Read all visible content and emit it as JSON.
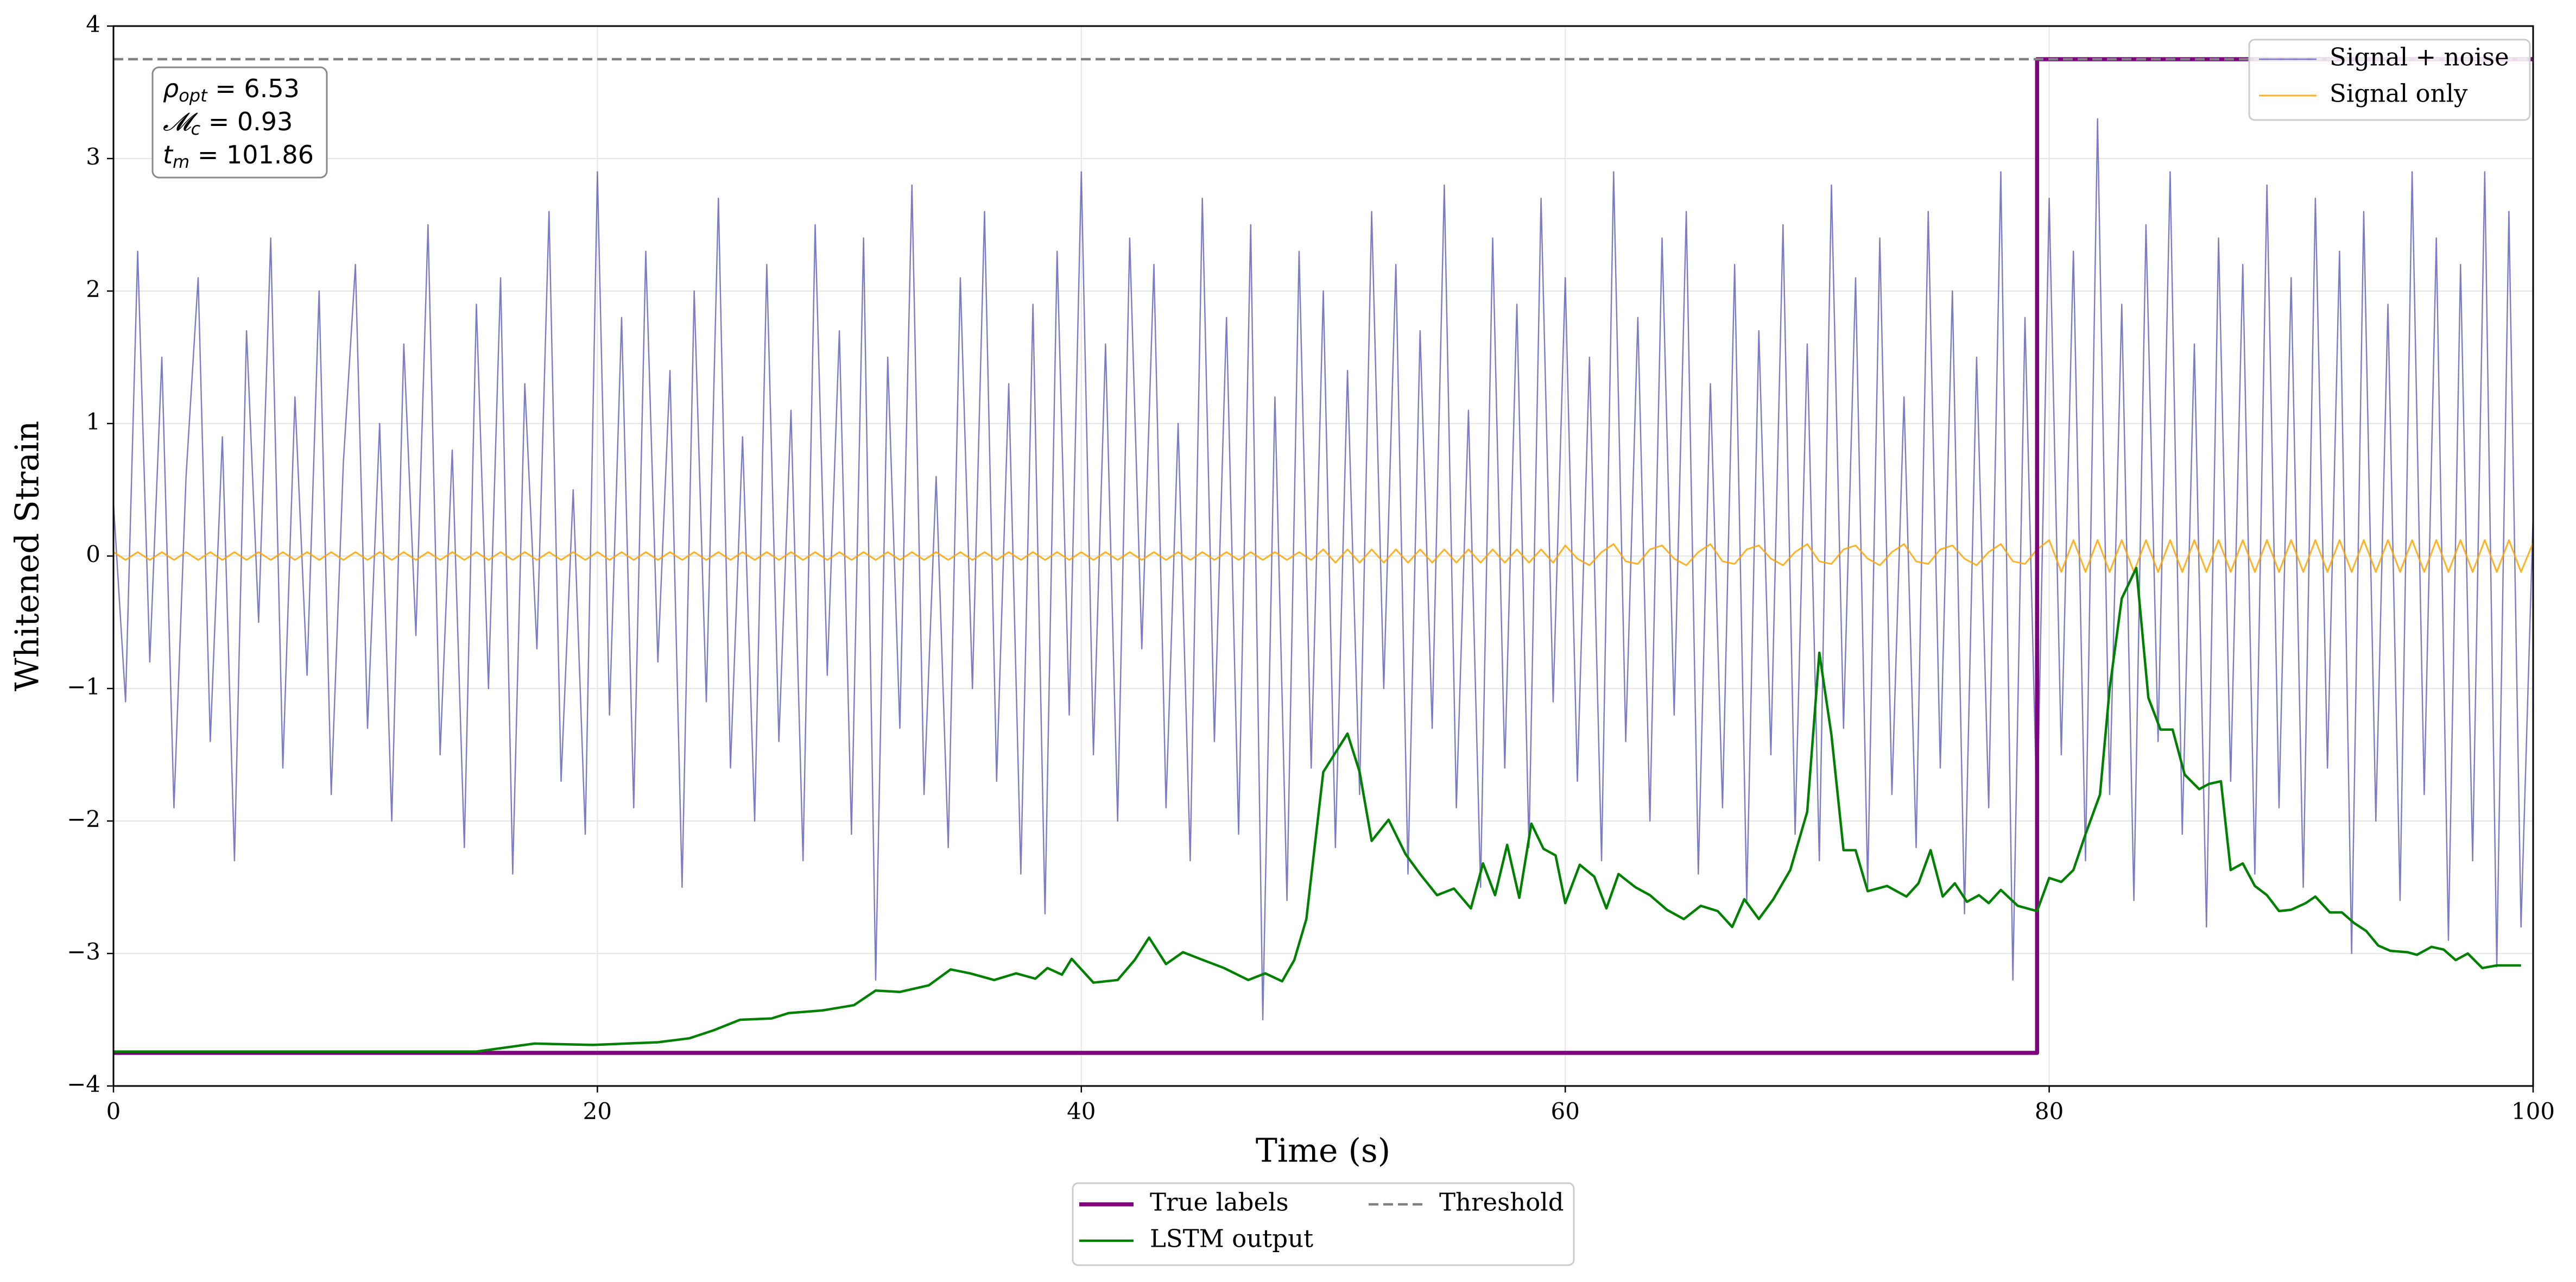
{
  "chart_data": {
    "type": "line",
    "xlabel": "Time (s)",
    "ylabel": "Whitened Strain",
    "xlim": [
      0,
      100
    ],
    "ylim": [
      -4,
      4
    ],
    "xticks": [
      0,
      20,
      40,
      60,
      80,
      100
    ],
    "yticks": [
      {
        "value": -4,
        "label": "−4"
      },
      {
        "value": -3,
        "label": "−3"
      },
      {
        "value": -2,
        "label": "−2"
      },
      {
        "value": -1,
        "label": "−1"
      },
      0,
      1,
      2,
      3,
      4
    ],
    "grid": true,
    "annotation": [
      {
        "symbol": "ρ",
        "subscript": "opt",
        "text": " = 6.53"
      },
      {
        "symbol": "𝓜",
        "subscript": "c",
        "text": " = 0.93"
      },
      {
        "symbol": "t",
        "subscript": "m",
        "text": " = 101.86"
      }
    ],
    "x": [
      0,
      0.5,
      1,
      1.5,
      2,
      2.5,
      3,
      3.5,
      4,
      4.5,
      5,
      5.5,
      6,
      6.5,
      7,
      7.5,
      8,
      8.5,
      9,
      9.5,
      10,
      10.5,
      11,
      11.5,
      12,
      12.5,
      13,
      13.5,
      14,
      14.5,
      15,
      15.5,
      16,
      16.5,
      17,
      17.5,
      18,
      18.5,
      19,
      19.5,
      20,
      20.5,
      21,
      21.5,
      22,
      22.5,
      23,
      23.5,
      24,
      24.5,
      25,
      25.5,
      26,
      26.5,
      27,
      27.5,
      28,
      28.5,
      29,
      29.5,
      30,
      30.5,
      31,
      31.5,
      32,
      32.5,
      33,
      33.5,
      34,
      34.5,
      35,
      35.5,
      36,
      36.5,
      37,
      37.5,
      38,
      38.5,
      39,
      39.5,
      40,
      40.5,
      41,
      41.5,
      42,
      42.5,
      43,
      43.5,
      44,
      44.5,
      45,
      45.5,
      46,
      46.5,
      47,
      47.5,
      48,
      48.5,
      49,
      49.5,
      50,
      50.5,
      51,
      51.5,
      52,
      52.5,
      53,
      53.5,
      54,
      54.5,
      55,
      55.5,
      56,
      56.5,
      57,
      57.5,
      58,
      58.5,
      59,
      59.5,
      60,
      60.5,
      61,
      61.5,
      62,
      62.5,
      63,
      63.5,
      64,
      64.5,
      65,
      65.5,
      66,
      66.5,
      67,
      67.5,
      68,
      68.5,
      69,
      69.5,
      70,
      70.5,
      71,
      71.5,
      72,
      72.5,
      73,
      73.5,
      74,
      74.5,
      75,
      75.5,
      76,
      76.5,
      77,
      77.5,
      78,
      78.5,
      79,
      79.5,
      80,
      80.5,
      81,
      81.5,
      82,
      82.5,
      83,
      83.5,
      84,
      84.5,
      85,
      85.5,
      86,
      86.5,
      87,
      87.5,
      88,
      88.5,
      89,
      89.5,
      90,
      90.5,
      91,
      91.5,
      92,
      92.5,
      93,
      93.5,
      94,
      94.5,
      95,
      95.5,
      96,
      96.5,
      97,
      97.5,
      98,
      98.5,
      99,
      99.5,
      100
    ],
    "series": [
      {
        "name": "Signal + noise",
        "color": "#5a5ab8",
        "width": 2.4,
        "opacity": 0.8,
        "legend": "upper right",
        "values": [
          0.4,
          -1.1,
          2.3,
          -0.8,
          1.5,
          -1.9,
          0.6,
          2.1,
          -1.4,
          0.9,
          -2.3,
          1.7,
          -0.5,
          2.4,
          -1.6,
          1.2,
          -0.9,
          2.0,
          -1.8,
          0.7,
          2.2,
          -1.3,
          1.0,
          -2.0,
          1.6,
          -0.6,
          2.5,
          -1.5,
          0.8,
          -2.2,
          1.9,
          -1.0,
          2.1,
          -2.4,
          1.3,
          -0.7,
          2.6,
          -1.7,
          0.5,
          -2.1,
          2.9,
          -1.2,
          1.8,
          -1.9,
          2.3,
          -0.8,
          1.4,
          -2.5,
          2.0,
          -1.1,
          2.7,
          -1.6,
          0.9,
          -2.0,
          2.2,
          -1.4,
          1.1,
          -2.3,
          2.5,
          -0.9,
          1.7,
          -2.1,
          2.4,
          -3.2,
          1.5,
          -1.3,
          2.8,
          -1.8,
          0.6,
          -2.2,
          2.1,
          -1.0,
          2.6,
          -1.7,
          1.3,
          -2.4,
          1.9,
          -2.7,
          2.3,
          -1.2,
          2.9,
          -1.5,
          1.6,
          -2.0,
          2.4,
          -0.7,
          2.2,
          -1.9,
          1.0,
          -2.3,
          2.7,
          -1.4,
          1.8,
          -2.1,
          2.5,
          -3.5,
          1.2,
          -2.6,
          2.3,
          -1.6,
          2.0,
          -2.2,
          1.4,
          -1.8,
          2.6,
          -1.0,
          2.2,
          -2.4,
          1.7,
          -1.3,
          2.8,
          -1.9,
          1.1,
          -2.5,
          2.4,
          -1.6,
          1.9,
          -2.2,
          2.7,
          -1.1,
          2.1,
          -1.7,
          1.5,
          -2.3,
          2.9,
          -1.4,
          1.8,
          -2.0,
          2.4,
          -1.2,
          2.6,
          -2.4,
          1.3,
          -1.9,
          2.2,
          -2.6,
          1.7,
          -1.5,
          2.5,
          -2.1,
          1.6,
          -2.3,
          2.8,
          -1.3,
          2.1,
          -2.5,
          2.4,
          -1.8,
          1.2,
          -2.2,
          2.6,
          -1.6,
          2.0,
          -2.7,
          1.5,
          -1.9,
          2.9,
          -3.2,
          1.8,
          -2.0,
          2.7,
          -1.5,
          2.3,
          -2.3,
          3.3,
          -1.8,
          1.9,
          -2.6,
          2.5,
          -1.4,
          2.9,
          -2.1,
          1.6,
          -2.8,
          2.4,
          -1.7,
          2.2,
          -2.4,
          2.8,
          -1.9,
          2.1,
          -2.5,
          2.7,
          -1.6,
          2.3,
          -3.0,
          2.6,
          -2.0,
          1.9,
          -2.6,
          2.9,
          -1.8,
          2.4,
          -2.9,
          2.2,
          -2.3,
          2.9,
          -3.1,
          2.6,
          -2.8,
          0.3
        ]
      },
      {
        "name": "Signal only",
        "color": "#ffa500",
        "width": 3,
        "opacity": 0.85,
        "legend": "upper right",
        "values": [
          0.03,
          -0.03,
          0.03,
          -0.03,
          0.03,
          -0.03,
          0.03,
          -0.03,
          0.03,
          -0.03,
          0.03,
          -0.03,
          0.03,
          -0.03,
          0.03,
          -0.03,
          0.03,
          -0.03,
          0.03,
          -0.03,
          0.03,
          -0.03,
          0.03,
          -0.03,
          0.03,
          -0.03,
          0.03,
          -0.03,
          0.03,
          -0.03,
          0.03,
          -0.03,
          0.03,
          -0.03,
          0.03,
          -0.03,
          0.03,
          -0.03,
          0.03,
          -0.03,
          0.03,
          -0.03,
          0.03,
          -0.03,
          0.03,
          -0.03,
          0.03,
          -0.03,
          0.03,
          -0.03,
          0.03,
          -0.03,
          0.03,
          -0.03,
          0.03,
          -0.03,
          0.03,
          -0.03,
          0.03,
          -0.03,
          0.03,
          -0.03,
          0.03,
          -0.03,
          0.03,
          -0.03,
          0.03,
          -0.03,
          0.03,
          -0.03,
          0.03,
          -0.03,
          0.03,
          -0.03,
          0.03,
          -0.03,
          0.03,
          -0.03,
          0.03,
          -0.03,
          0.03,
          -0.03,
          0.03,
          -0.03,
          0.03,
          -0.03,
          0.03,
          -0.03,
          0.03,
          -0.03,
          0.03,
          -0.03,
          0.03,
          -0.03,
          0.03,
          -0.03,
          0.03,
          -0.03,
          0.03,
          -0.03,
          0.05,
          -0.05,
          0.05,
          -0.05,
          0.05,
          -0.05,
          0.05,
          -0.05,
          0.05,
          -0.05,
          0.05,
          -0.05,
          0.05,
          -0.05,
          0.05,
          -0.05,
          0.05,
          -0.05,
          0.05,
          -0.05,
          0.08,
          -0.02,
          -0.07,
          0.03,
          0.09,
          -0.04,
          -0.06,
          0.05,
          0.08,
          -0.02,
          -0.07,
          0.03,
          0.09,
          -0.04,
          -0.06,
          0.05,
          0.08,
          -0.02,
          -0.07,
          0.03,
          0.09,
          -0.04,
          -0.06,
          0.05,
          0.08,
          -0.02,
          -0.07,
          0.03,
          0.09,
          -0.04,
          -0.06,
          0.05,
          0.08,
          -0.02,
          -0.07,
          0.03,
          0.09,
          -0.04,
          -0.06,
          0.05,
          0.12,
          -0.12,
          0.12,
          -0.12,
          0.12,
          -0.12,
          0.12,
          -0.12,
          0.12,
          -0.12,
          0.12,
          -0.12,
          0.12,
          -0.12,
          0.12,
          -0.12,
          0.12,
          -0.12,
          0.12,
          -0.12,
          0.12,
          -0.12,
          0.12,
          -0.12,
          0.12,
          -0.12,
          0.12,
          -0.12,
          0.12,
          -0.12,
          0.12,
          -0.12,
          0.12,
          -0.12,
          0.12,
          -0.12,
          0.12,
          -0.12,
          0.12,
          -0.12,
          0.1
        ]
      },
      {
        "name": "True labels",
        "color": "#800080",
        "width": 7.5,
        "legend": "lower center",
        "x": [
          0,
          79.5,
          79.5,
          100
        ],
        "values": [
          -3.75,
          -3.75,
          3.75,
          3.75
        ]
      },
      {
        "name": "LSTM output",
        "color": "#008000",
        "width": 4.5,
        "legend": "lower center",
        "x": [
          0,
          15,
          17.4,
          19.8,
          22.5,
          23.8,
          24.8,
          25.9,
          27.2,
          27.9,
          29.3,
          30.6,
          31.5,
          32.5,
          33.7,
          34.6,
          35.4,
          36.4,
          37.3,
          38.1,
          38.6,
          39.2,
          39.6,
          40.5,
          41.5,
          42.2,
          42.8,
          43.5,
          44.2,
          44.9,
          45.9,
          46.9,
          47.6,
          48.3,
          48.8,
          49.3,
          50.0,
          51.0,
          51.5,
          52.0,
          52.7,
          53.4,
          54.0,
          54.7,
          55.4,
          56.1,
          56.6,
          57.1,
          57.6,
          58.1,
          58.6,
          59.1,
          59.6,
          60.0,
          60.6,
          61.2,
          61.7,
          62.2,
          62.9,
          63.5,
          64.2,
          64.9,
          65.6,
          66.3,
          66.9,
          67.4,
          68.0,
          68.6,
          69.3,
          70.0,
          70.5,
          71.0,
          71.5,
          72.0,
          72.5,
          73.3,
          74.1,
          74.6,
          75.1,
          75.6,
          76.1,
          76.6,
          77.1,
          77.5,
          78.0,
          78.7,
          79.5,
          80.0,
          80.5,
          81.0,
          81.5,
          82.1,
          82.5,
          83.0,
          83.6,
          84.1,
          84.6,
          85.1,
          85.6,
          86.2,
          86.6,
          87.1,
          87.5,
          88.0,
          88.5,
          89.0,
          89.5,
          90.0,
          90.6,
          91.0,
          91.6,
          92.1,
          92.6,
          93.1,
          93.6,
          94.1,
          94.8,
          95.2,
          95.8,
          96.3,
          96.8,
          97.3,
          97.9,
          98.5,
          99.5
        ],
        "values": [
          -3.74,
          -3.74,
          -3.68,
          -3.69,
          -3.67,
          -3.64,
          -3.58,
          -3.5,
          -3.49,
          -3.45,
          -3.43,
          -3.39,
          -3.28,
          -3.29,
          -3.24,
          -3.12,
          -3.15,
          -3.2,
          -3.15,
          -3.19,
          -3.11,
          -3.16,
          -3.04,
          -3.22,
          -3.2,
          -3.05,
          -2.88,
          -3.08,
          -2.99,
          -3.04,
          -3.11,
          -3.2,
          -3.15,
          -3.21,
          -3.05,
          -2.74,
          -1.63,
          -1.34,
          -1.63,
          -2.15,
          -1.99,
          -2.25,
          -2.4,
          -2.56,
          -2.51,
          -2.66,
          -2.32,
          -2.56,
          -2.18,
          -2.58,
          -2.02,
          -2.21,
          -2.26,
          -2.62,
          -2.33,
          -2.42,
          -2.66,
          -2.4,
          -2.5,
          -2.56,
          -2.67,
          -2.74,
          -2.64,
          -2.68,
          -2.8,
          -2.59,
          -2.74,
          -2.59,
          -2.37,
          -1.93,
          -0.73,
          -1.35,
          -2.22,
          -2.22,
          -2.53,
          -2.49,
          -2.57,
          -2.47,
          -2.22,
          -2.57,
          -2.47,
          -2.61,
          -2.56,
          -2.62,
          -2.52,
          -2.64,
          -2.68,
          -2.43,
          -2.46,
          -2.37,
          -2.1,
          -1.8,
          -1.0,
          -0.32,
          -0.09,
          -1.07,
          -1.31,
          -1.31,
          -1.65,
          -1.76,
          -1.72,
          -1.7,
          -2.37,
          -2.32,
          -2.49,
          -2.56,
          -2.68,
          -2.67,
          -2.62,
          -2.57,
          -2.69,
          -2.69,
          -2.77,
          -2.83,
          -2.94,
          -2.98,
          -2.99,
          -3.01,
          -2.95,
          -2.97,
          -3.05,
          -3.0,
          -3.11,
          -3.09,
          -3.09
        ]
      },
      {
        "name": "Threshold",
        "color": "#808080",
        "width": 4.5,
        "dash": true,
        "legend": "lower center",
        "x": [
          0,
          100
        ],
        "values": [
          3.75,
          3.75
        ]
      }
    ]
  }
}
